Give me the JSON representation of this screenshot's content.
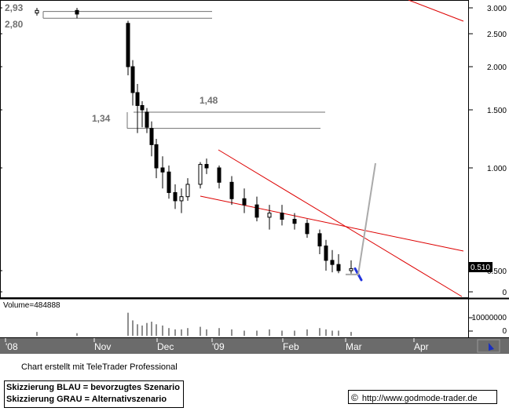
{
  "chart_data": {
    "type": "candlestick",
    "price_axis": {
      "ticks": [
        "3.000",
        "2.500",
        "2.000",
        "1.500",
        "1.000",
        "0.500",
        "0"
      ],
      "current_value_label": "0.510"
    },
    "volume_axis": {
      "label": "Volume=484888",
      "ticks": [
        "10000000",
        "0"
      ]
    },
    "x_axis": {
      "ticks": [
        "'08",
        "Nov",
        "Dec",
        "'09",
        "Feb",
        "Mar",
        "Apr"
      ]
    },
    "annotations": [
      "2,93",
      "2,80",
      "1,48",
      "1,34"
    ],
    "levels": [
      2.93,
      2.8,
      1.48,
      1.34
    ],
    "last_price": 0.51,
    "series": [
      {
        "values": [
          [
            2.9,
            3.0,
            2.85,
            2.95
          ],
          [
            2.95,
            3.0,
            2.8,
            2.88
          ],
          [
            2.7,
            2.75,
            1.9,
            2.0
          ],
          [
            2.0,
            2.1,
            1.55,
            1.7
          ],
          [
            1.7,
            1.8,
            1.3,
            1.55
          ],
          [
            1.55,
            1.6,
            1.35,
            1.5
          ],
          [
            1.48,
            1.52,
            1.3,
            1.35
          ],
          [
            1.34,
            1.4,
            1.1,
            1.2
          ],
          [
            1.2,
            1.25,
            0.95,
            1.0
          ],
          [
            1.0,
            1.1,
            0.9,
            0.98
          ],
          [
            0.98,
            1.02,
            0.85,
            0.88
          ],
          [
            0.88,
            0.92,
            0.8,
            0.84
          ],
          [
            0.84,
            0.9,
            0.78,
            0.86
          ],
          [
            0.86,
            0.95,
            0.84,
            0.92
          ],
          [
            0.92,
            1.05,
            0.9,
            1.03
          ],
          [
            1.03,
            1.08,
            0.97,
            1.0
          ],
          [
            1.0,
            1.02,
            0.9,
            0.93
          ],
          [
            0.93,
            0.96,
            0.82,
            0.85
          ],
          [
            0.85,
            0.9,
            0.78,
            0.82
          ],
          [
            0.82,
            0.86,
            0.74,
            0.76
          ],
          [
            0.76,
            0.82,
            0.7,
            0.78
          ],
          [
            0.78,
            0.82,
            0.72,
            0.75
          ],
          [
            0.75,
            0.78,
            0.7,
            0.73
          ],
          [
            0.73,
            0.75,
            0.66,
            0.68
          ],
          [
            0.68,
            0.7,
            0.58,
            0.62
          ],
          [
            0.62,
            0.65,
            0.5,
            0.55
          ],
          [
            0.55,
            0.6,
            0.46,
            0.53
          ],
          [
            0.53,
            0.58,
            0.44,
            0.5
          ],
          [
            0.5,
            0.55,
            0.43,
            0.51
          ]
        ]
      }
    ],
    "volume": [
      0.3,
      0.2,
      1.8,
      1.2,
      0.9,
      0.8,
      1.0,
      1.1,
      0.9,
      0.8,
      0.6,
      0.5,
      0.5,
      0.6,
      0.7,
      0.5,
      0.6,
      0.5,
      0.4,
      0.4,
      0.5,
      0.4,
      0.4,
      0.5,
      0.6,
      0.5,
      0.4,
      0.4,
      0.3
    ],
    "scenarios": {
      "blue": [
        [
          0.51,
          0.44
        ],
        [
          0.45,
          0.28
        ]
      ],
      "grey": [
        [
          0.41,
          0.73
        ],
        [
          0.49,
          1.04
        ]
      ]
    },
    "colors": {
      "candles": "#000000",
      "levels": "#707070",
      "trend": "#dd0000",
      "blue": "#2233dd",
      "grey": "#aaaaaa",
      "header": "#6b6b6b",
      "value_box": "#000000"
    }
  },
  "footer": {
    "credit": "Chart erstellt mit TeleTrader Professional",
    "legend_blue": "Skizzierung BLAU = bevorzugtes Szenario",
    "legend_grey": "Skizzierung GRAU = Alternativszenario",
    "copyright_symbol": "©",
    "url": "http://www.godmode-trader.de"
  }
}
